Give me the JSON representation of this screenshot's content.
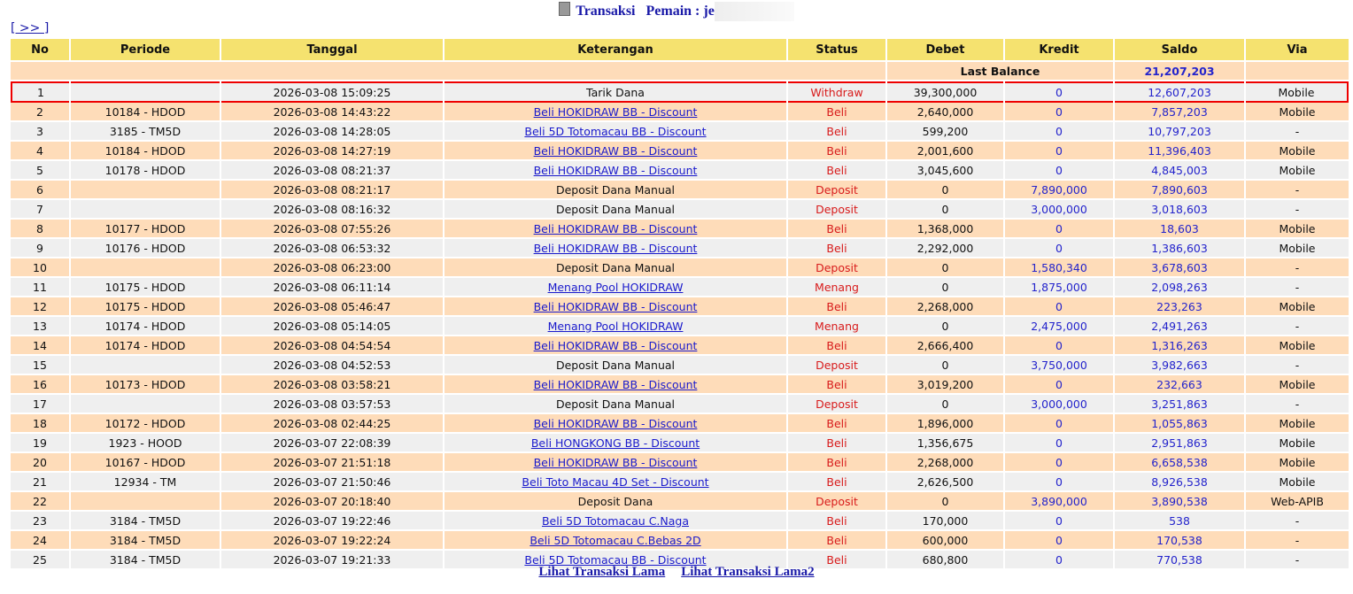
{
  "header": {
    "title": "Transaksi",
    "player_label": "Pemain : je",
    "nav_link": "[ >> ]"
  },
  "columns": [
    "No",
    "Periode",
    "Tanggal",
    "Keterangan",
    "Status",
    "Debet",
    "Kredit",
    "Saldo",
    "Via"
  ],
  "last_balance": {
    "label": "Last Balance",
    "value": "21,207,203"
  },
  "rows": [
    [
      "1",
      "",
      "2026-03-08 15:09:25",
      "Tarik Dana",
      "Withdraw",
      "39,300,000",
      "0",
      "12,607,203",
      "Mobile",
      false
    ],
    [
      "2",
      "10184 - HDOD",
      "2026-03-08 14:43:22",
      "Beli HOKIDRAW BB - Discount",
      "Beli",
      "2,640,000",
      "0",
      "7,857,203",
      "Mobile",
      true
    ],
    [
      "3",
      "3185 - TM5D",
      "2026-03-08 14:28:05",
      "Beli 5D Totomacau BB - Discount",
      "Beli",
      "599,200",
      "0",
      "10,797,203",
      "-",
      true
    ],
    [
      "4",
      "10184 - HDOD",
      "2026-03-08 14:27:19",
      "Beli HOKIDRAW BB - Discount",
      "Beli",
      "2,001,600",
      "0",
      "11,396,403",
      "Mobile",
      true
    ],
    [
      "5",
      "10178 - HDOD",
      "2026-03-08 08:21:37",
      "Beli HOKIDRAW BB - Discount",
      "Beli",
      "3,045,600",
      "0",
      "4,845,003",
      "Mobile",
      true
    ],
    [
      "6",
      "",
      "2026-03-08 08:21:17",
      "Deposit Dana Manual",
      "Deposit",
      "0",
      "7,890,000",
      "7,890,603",
      "-",
      false
    ],
    [
      "7",
      "",
      "2026-03-08 08:16:32",
      "Deposit Dana Manual",
      "Deposit",
      "0",
      "3,000,000",
      "3,018,603",
      "-",
      false
    ],
    [
      "8",
      "10177 - HDOD",
      "2026-03-08 07:55:26",
      "Beli HOKIDRAW BB - Discount",
      "Beli",
      "1,368,000",
      "0",
      "18,603",
      "Mobile",
      true
    ],
    [
      "9",
      "10176 - HDOD",
      "2026-03-08 06:53:32",
      "Beli HOKIDRAW BB - Discount",
      "Beli",
      "2,292,000",
      "0",
      "1,386,603",
      "Mobile",
      true
    ],
    [
      "10",
      "",
      "2026-03-08 06:23:00",
      "Deposit Dana Manual",
      "Deposit",
      "0",
      "1,580,340",
      "3,678,603",
      "-",
      false
    ],
    [
      "11",
      "10175 - HDOD",
      "2026-03-08 06:11:14",
      "Menang Pool HOKIDRAW",
      "Menang",
      "0",
      "1,875,000",
      "2,098,263",
      "-",
      true
    ],
    [
      "12",
      "10175 - HDOD",
      "2026-03-08 05:46:47",
      "Beli HOKIDRAW BB - Discount",
      "Beli",
      "2,268,000",
      "0",
      "223,263",
      "Mobile",
      true
    ],
    [
      "13",
      "10174 - HDOD",
      "2026-03-08 05:14:05",
      "Menang Pool HOKIDRAW",
      "Menang",
      "0",
      "2,475,000",
      "2,491,263",
      "-",
      true
    ],
    [
      "14",
      "10174 - HDOD",
      "2026-03-08 04:54:54",
      "Beli HOKIDRAW BB - Discount",
      "Beli",
      "2,666,400",
      "0",
      "1,316,263",
      "Mobile",
      true
    ],
    [
      "15",
      "",
      "2026-03-08 04:52:53",
      "Deposit Dana Manual",
      "Deposit",
      "0",
      "3,750,000",
      "3,982,663",
      "-",
      false
    ],
    [
      "16",
      "10173 - HDOD",
      "2026-03-08 03:58:21",
      "Beli HOKIDRAW BB - Discount",
      "Beli",
      "3,019,200",
      "0",
      "232,663",
      "Mobile",
      true
    ],
    [
      "17",
      "",
      "2026-03-08 03:57:53",
      "Deposit Dana Manual",
      "Deposit",
      "0",
      "3,000,000",
      "3,251,863",
      "-",
      false
    ],
    [
      "18",
      "10172 - HDOD",
      "2026-03-08 02:44:25",
      "Beli HOKIDRAW BB - Discount",
      "Beli",
      "1,896,000",
      "0",
      "1,055,863",
      "Mobile",
      true
    ],
    [
      "19",
      "1923 - HOOD",
      "2026-03-07 22:08:39",
      "Beli HONGKONG BB - Discount",
      "Beli",
      "1,356,675",
      "0",
      "2,951,863",
      "Mobile",
      true
    ],
    [
      "20",
      "10167 - HDOD",
      "2026-03-07 21:51:18",
      "Beli HOKIDRAW BB - Discount",
      "Beli",
      "2,268,000",
      "0",
      "6,658,538",
      "Mobile",
      true
    ],
    [
      "21",
      "12934 - TM",
      "2026-03-07 21:50:46",
      "Beli Toto Macau 4D Set - Discount",
      "Beli",
      "2,626,500",
      "0",
      "8,926,538",
      "Mobile",
      true
    ],
    [
      "22",
      "",
      "2026-03-07 20:18:40",
      "Deposit Dana",
      "Deposit",
      "0",
      "3,890,000",
      "3,890,538",
      "Web-APIB",
      false
    ],
    [
      "23",
      "3184 - TM5D",
      "2026-03-07 19:22:46",
      "Beli 5D Totomacau C.Naga",
      "Beli",
      "170,000",
      "0",
      "538",
      "-",
      true
    ],
    [
      "24",
      "3184 - TM5D",
      "2026-03-07 19:22:24",
      "Beli 5D Totomacau C.Bebas 2D",
      "Beli",
      "600,000",
      "0",
      "170,538",
      "-",
      true
    ],
    [
      "25",
      "3184 - TM5D",
      "2026-03-07 19:21:33",
      "Beli 5D Totomacau BB - Discount",
      "Beli",
      "680,800",
      "0",
      "770,538",
      "-",
      true
    ]
  ],
  "footer": {
    "link1": "Lihat Transaksi Lama",
    "link2": "Lihat Transaksi Lama2"
  },
  "colors": {
    "header": "#f5e26f",
    "row_peach": "#fedcb9",
    "row_gray": "#efefef",
    "status": "#d81b1b",
    "amount_blue": "#2424cc",
    "highlight": "#e00000"
  }
}
